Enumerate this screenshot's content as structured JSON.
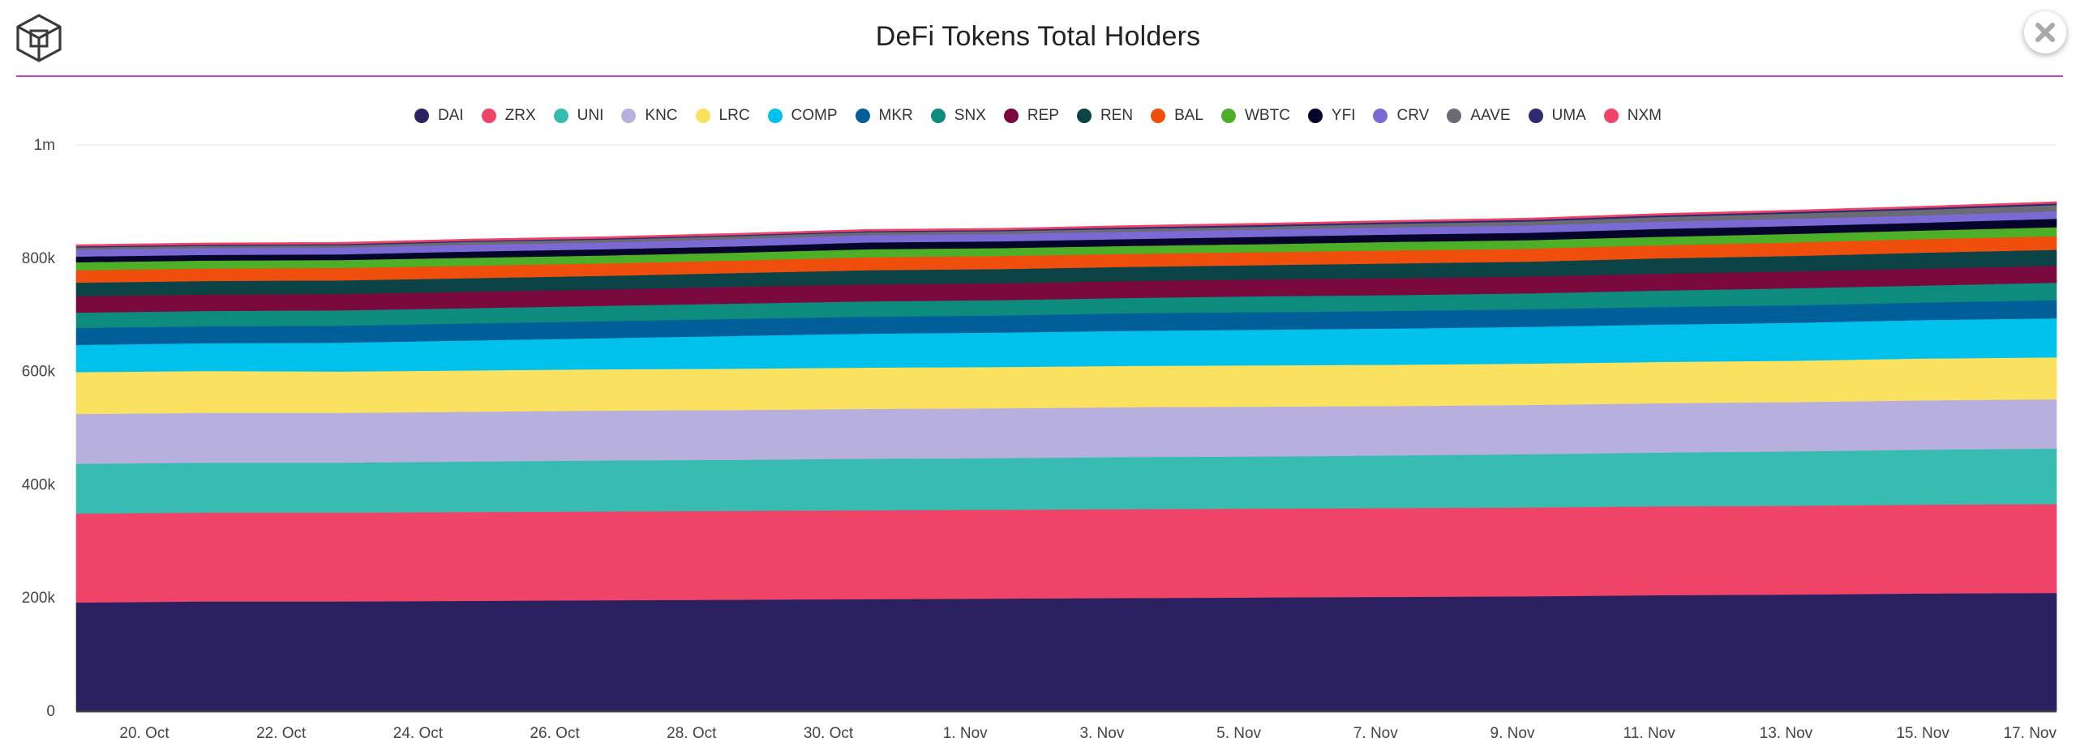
{
  "header": {
    "title": "DeFi Tokens Total Holders",
    "accent_color": "#c63fd0",
    "logo_icon": "cube-logo-icon",
    "close_icon": "close-icon"
  },
  "chart_data": {
    "type": "area",
    "stacked": true,
    "title": "DeFi Tokens Total Holders",
    "xlabel": "",
    "ylabel": "",
    "ylim": [
      0,
      1000000
    ],
    "y_ticks": [
      0,
      200000,
      400000,
      600000,
      800000,
      1000000
    ],
    "y_tick_labels": [
      "0",
      "200k",
      "400k",
      "600k",
      "800k",
      "1m"
    ],
    "x_tick_labels": [
      "20. Oct",
      "22. Oct",
      "24. Oct",
      "26. Oct",
      "28. Oct",
      "30. Oct",
      "1. Nov",
      "3. Nov",
      "5. Nov",
      "7. Nov",
      "9. Nov",
      "11. Nov",
      "13. Nov",
      "15. Nov",
      "17. Nov"
    ],
    "x": [
      "19. Oct",
      "21. Oct",
      "23. Oct",
      "25. Oct",
      "27. Oct",
      "29. Oct",
      "31. Oct",
      "2. Nov",
      "4. Nov",
      "6. Nov",
      "8. Nov",
      "10. Nov",
      "12. Nov",
      "14. Nov",
      "16. Nov",
      "17. Nov"
    ],
    "grid": true,
    "legend_position": "top-center",
    "series": [
      {
        "name": "DAI",
        "color": "#2b2160",
        "values": [
          192000,
          194000,
          194000,
          195000,
          196000,
          197000,
          198000,
          199000,
          200000,
          201000,
          202000,
          203000,
          205000,
          206000,
          208000,
          209000
        ]
      },
      {
        "name": "ZRX",
        "color": "#ef4467",
        "values": [
          157000,
          157000,
          157000,
          157000,
          157000,
          157000,
          157000,
          157000,
          157000,
          157000,
          157000,
          157000,
          157000,
          157000,
          157000,
          157000
        ]
      },
      {
        "name": "UNI",
        "color": "#38bcb2",
        "values": [
          88000,
          88000,
          88000,
          89000,
          90000,
          90000,
          91000,
          91000,
          92000,
          92000,
          93000,
          94000,
          95000,
          96000,
          97000,
          98000
        ]
      },
      {
        "name": "KNC",
        "color": "#b7b0df",
        "values": [
          88000,
          88000,
          88000,
          88000,
          88000,
          88000,
          88000,
          88000,
          88000,
          88000,
          87000,
          87000,
          87000,
          87000,
          87000,
          87000
        ]
      },
      {
        "name": "LRC",
        "color": "#fbe160",
        "values": [
          74000,
          74000,
          73000,
          73000,
          73000,
          73000,
          73000,
          73000,
          73000,
          73000,
          73000,
          73000,
          73000,
          73000,
          74000,
          74000
        ]
      },
      {
        "name": "COMP",
        "color": "#00c1ec",
        "values": [
          48000,
          49000,
          51000,
          53000,
          55000,
          58000,
          60000,
          61000,
          62000,
          63000,
          64000,
          65000,
          66000,
          67000,
          68000,
          69000
        ]
      },
      {
        "name": "MKR",
        "color": "#005f99",
        "values": [
          30000,
          30000,
          30000,
          30000,
          30000,
          30000,
          30000,
          30000,
          31000,
          31000,
          31000,
          31000,
          31000,
          31000,
          31000,
          32000
        ]
      },
      {
        "name": "SNX",
        "color": "#0d8c7e",
        "values": [
          27000,
          27000,
          27000,
          27000,
          27000,
          27000,
          27000,
          27000,
          27000,
          28000,
          28000,
          28000,
          29000,
          30000,
          30000,
          31000
        ]
      },
      {
        "name": "REP",
        "color": "#7a0a3e",
        "values": [
          29000,
          29000,
          29000,
          29000,
          29000,
          30000,
          30000,
          30000,
          30000,
          30000,
          30000,
          30000,
          30000,
          30000,
          30000,
          30000
        ]
      },
      {
        "name": "REN",
        "color": "#0b4346",
        "values": [
          24000,
          24000,
          24000,
          24000,
          24000,
          24000,
          25000,
          25000,
          25000,
          25000,
          26000,
          26000,
          27000,
          27000,
          28000,
          28000
        ]
      },
      {
        "name": "BAL",
        "color": "#f04e0c",
        "values": [
          22000,
          22000,
          22000,
          22000,
          22000,
          22000,
          23000,
          23000,
          23000,
          23000,
          23000,
          23000,
          23000,
          24000,
          24000,
          24000
        ]
      },
      {
        "name": "WBTC",
        "color": "#4caf27",
        "values": [
          14000,
          14000,
          14000,
          14000,
          14000,
          14000,
          14000,
          14000,
          14000,
          14000,
          15000,
          15000,
          15000,
          15000,
          15000,
          16000
        ]
      },
      {
        "name": "YFI",
        "color": "#05052b",
        "values": [
          10000,
          10000,
          10000,
          11000,
          11000,
          11000,
          12000,
          12000,
          12000,
          13000,
          13000,
          13000,
          14000,
          14000,
          14000,
          15000
        ]
      },
      {
        "name": "CRV",
        "color": "#7b6ad4",
        "values": [
          12000,
          12000,
          12000,
          12000,
          12000,
          13000,
          13000,
          13000,
          13000,
          13000,
          13000,
          13000,
          13000,
          13000,
          13000,
          13000
        ]
      },
      {
        "name": "AAVE",
        "color": "#6a6b73",
        "values": [
          4000,
          4000,
          4000,
          5000,
          5000,
          5000,
          5000,
          5000,
          5000,
          5000,
          6000,
          7000,
          8000,
          9000,
          10000,
          11000
        ]
      },
      {
        "name": "UMA",
        "color": "#2e2a73",
        "values": [
          2000,
          2000,
          2000,
          2000,
          2000,
          2000,
          2000,
          2000,
          3000,
          3000,
          3000,
          3000,
          3000,
          3000,
          3000,
          3000
        ]
      },
      {
        "name": "NXM",
        "color": "#ef4467",
        "values": [
          3000,
          3000,
          3000,
          3000,
          3000,
          3000,
          3000,
          3000,
          3000,
          3000,
          3000,
          3000,
          3000,
          3000,
          3000,
          3000
        ]
      }
    ]
  }
}
